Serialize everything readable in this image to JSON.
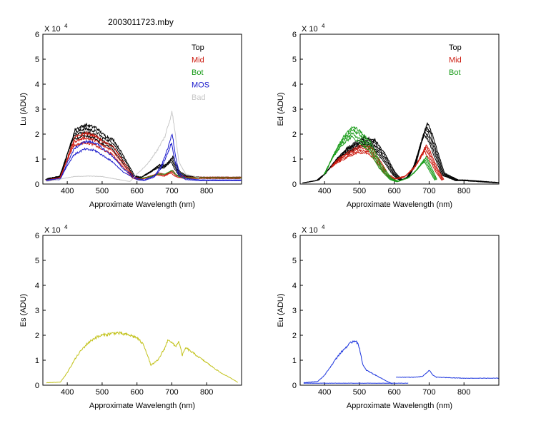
{
  "title": "2003011723.mby",
  "colors": {
    "top": "#000000",
    "mid": "#cc1a0f",
    "bot": "#1a9c1a",
    "mos": "#1a1acc",
    "bad": "#c8c8c8",
    "es": "#c2c21a",
    "eu": "#1a33dd"
  },
  "chart_data": [
    {
      "type": "line",
      "id": "lu",
      "ylabel": "Lu (ADU)",
      "xlabel": "Approximate Wavelength (nm)",
      "multiplier_text": "X 10",
      "multiplier_exp": "4",
      "xlim": [
        330,
        900
      ],
      "ylim": [
        0,
        6
      ],
      "xticks": [
        400,
        500,
        600,
        700,
        800
      ],
      "yticks": [
        0,
        1,
        2,
        3,
        4,
        5,
        6
      ],
      "legend": [
        "Top",
        "Mid",
        "Bot",
        "MOS",
        "Bad"
      ],
      "legend_color_keys": [
        "top",
        "mid",
        "bot",
        "mos",
        "bad"
      ],
      "series": [
        {
          "name": "Top",
          "color_key": "top",
          "count": 4,
          "x": [
            340,
            380,
            400,
            420,
            450,
            480,
            500,
            530,
            560,
            590,
            610,
            640,
            660,
            680,
            700,
            710,
            720,
            740,
            780,
            900
          ],
          "y": [
            0.2,
            0.3,
            1.2,
            2.0,
            2.15,
            2.05,
            1.8,
            1.6,
            1.0,
            0.3,
            0.25,
            0.5,
            0.7,
            0.7,
            1.0,
            0.7,
            0.45,
            0.3,
            0.25,
            0.25
          ]
        },
        {
          "name": "Mid",
          "color_key": "mid",
          "count": 3,
          "x": [
            340,
            380,
            400,
            420,
            450,
            480,
            500,
            530,
            560,
            590,
            610,
            640,
            660,
            680,
            700,
            710,
            720,
            740,
            780,
            900
          ],
          "y": [
            0.15,
            0.25,
            1.0,
            1.7,
            1.85,
            1.75,
            1.55,
            1.35,
            0.8,
            0.25,
            0.2,
            0.3,
            0.4,
            0.35,
            0.5,
            0.35,
            0.3,
            0.25,
            0.25,
            0.25
          ]
        },
        {
          "name": "Bot",
          "color_key": "bot",
          "count": 1,
          "x": [
            600,
            640,
            660,
            680,
            700,
            710,
            720,
            740,
            780,
            900
          ],
          "y": [
            0.2,
            0.3,
            0.4,
            0.4,
            0.55,
            0.4,
            0.3,
            0.25,
            0.25,
            0.25
          ]
        },
        {
          "name": "MOS",
          "color_key": "mos",
          "count": 2,
          "x": [
            340,
            380,
            400,
            420,
            450,
            480,
            500,
            530,
            560,
            600,
            620,
            650,
            670,
            690,
            700,
            710,
            720,
            740,
            780,
            900
          ],
          "y": [
            0.15,
            0.2,
            0.8,
            1.3,
            1.55,
            1.5,
            1.3,
            1.0,
            0.55,
            0.2,
            0.15,
            0.3,
            0.7,
            1.4,
            1.85,
            1.0,
            0.4,
            0.2,
            0.15,
            0.15
          ]
        },
        {
          "name": "Bad",
          "color_key": "bad",
          "count": 1,
          "x": [
            340,
            380,
            420,
            460,
            500,
            540,
            580,
            600,
            630,
            660,
            680,
            695,
            700,
            710,
            720,
            740,
            780
          ],
          "y": [
            0.1,
            0.2,
            0.3,
            0.32,
            0.3,
            0.2,
            0.1,
            0.4,
            0.8,
            1.4,
            1.9,
            2.6,
            2.95,
            2.0,
            0.9,
            0.4,
            0.25
          ]
        }
      ]
    },
    {
      "type": "line",
      "id": "ed",
      "ylabel": "Ed (ADU)",
      "xlabel": "Approximate Wavelength (nm)",
      "multiplier_text": "X 10",
      "multiplier_exp": "4",
      "xlim": [
        330,
        900
      ],
      "ylim": [
        0,
        6
      ],
      "xticks": [
        400,
        500,
        600,
        700,
        800
      ],
      "yticks": [
        0,
        1,
        2,
        3,
        4,
        5,
        6
      ],
      "legend": [
        "Top",
        "Mid",
        "Bot"
      ],
      "legend_color_keys": [
        "top",
        "mid",
        "bot"
      ],
      "series": [
        {
          "name": "Top",
          "color_key": "top",
          "count": 5,
          "x": [
            340,
            380,
            400,
            430,
            460,
            490,
            510,
            540,
            570,
            600,
            620,
            640,
            660,
            680,
            690,
            700,
            720,
            740,
            780,
            800,
            900
          ],
          "y": [
            0.05,
            0.15,
            0.4,
            0.9,
            1.3,
            1.55,
            1.7,
            1.6,
            1.1,
            0.4,
            0.15,
            0.3,
            0.8,
            1.8,
            2.2,
            2.0,
            1.2,
            0.4,
            0.15,
            0.15,
            0.05
          ]
        },
        {
          "name": "Mid",
          "color_key": "mid",
          "count": 4,
          "x": [
            420,
            440,
            470,
            500,
            530,
            550,
            580,
            600,
            630,
            660,
            680,
            690,
            700,
            720,
            740
          ],
          "y": [
            0.7,
            0.95,
            1.2,
            1.4,
            1.35,
            1.0,
            0.35,
            0.2,
            0.3,
            0.7,
            1.2,
            1.45,
            1.2,
            0.6,
            0.15
          ]
        },
        {
          "name": "Bot",
          "color_key": "bot",
          "count": 4,
          "x": [
            400,
            420,
            450,
            480,
            500,
            530,
            560,
            590,
            610,
            640,
            660,
            680,
            690,
            700,
            720
          ],
          "y": [
            0.4,
            1.0,
            1.7,
            2.1,
            1.9,
            1.5,
            0.7,
            0.2,
            0.1,
            0.25,
            0.5,
            0.85,
            1.0,
            0.7,
            0.15
          ]
        }
      ]
    },
    {
      "type": "line",
      "id": "es",
      "ylabel": "Es (ADU)",
      "xlabel": "Approximate Wavelength (nm)",
      "multiplier_text": "X 10",
      "multiplier_exp": "4",
      "xlim": [
        330,
        900
      ],
      "ylim": [
        0,
        6
      ],
      "xticks": [
        400,
        500,
        600,
        700,
        800
      ],
      "yticks": [
        0,
        1,
        2,
        3,
        4,
        5,
        6
      ],
      "legend": [],
      "legend_color_keys": [],
      "series": [
        {
          "name": "Es",
          "color_key": "es",
          "count": 1,
          "x": [
            340,
            380,
            400,
            420,
            440,
            460,
            480,
            500,
            520,
            540,
            560,
            580,
            600,
            620,
            635,
            640,
            660,
            680,
            690,
            700,
            710,
            720,
            730,
            740,
            760,
            780,
            800,
            820,
            840,
            860,
            880,
            890
          ],
          "y": [
            0.1,
            0.12,
            0.5,
            1.0,
            1.4,
            1.7,
            1.9,
            2.0,
            2.05,
            2.1,
            2.05,
            2.0,
            1.9,
            1.6,
            1.0,
            0.8,
            1.0,
            1.5,
            1.85,
            1.7,
            1.55,
            1.75,
            1.2,
            1.5,
            1.3,
            1.1,
            0.9,
            0.7,
            0.5,
            0.35,
            0.2,
            0.1
          ]
        }
      ]
    },
    {
      "type": "line",
      "id": "eu",
      "ylabel": "Eu (ADU)",
      "xlabel": "Approximate Wavelength (nm)",
      "multiplier_text": "X 10",
      "multiplier_exp": "4",
      "xlim": [
        330,
        900
      ],
      "ylim": [
        0,
        6
      ],
      "xticks": [
        400,
        500,
        600,
        700,
        800
      ],
      "yticks": [
        0,
        1,
        2,
        3,
        4,
        5,
        6
      ],
      "legend": [],
      "legend_color_keys": [],
      "series": [
        {
          "name": "Eu",
          "color_key": "eu",
          "count": 1,
          "x": [
            340,
            380,
            400,
            420,
            440,
            460,
            480,
            490,
            500,
            510,
            520,
            540,
            560,
            580,
            595
          ],
          "y": [
            0.1,
            0.15,
            0.4,
            0.8,
            1.2,
            1.5,
            1.75,
            1.8,
            1.5,
            0.8,
            0.6,
            0.45,
            0.3,
            0.15,
            0.05
          ]
        },
        {
          "name": "Eu-base",
          "color_key": "eu",
          "count": 1,
          "x": [
            340,
            640
          ],
          "y": [
            0.08,
            0.08
          ]
        },
        {
          "name": "Eu-red",
          "color_key": "eu",
          "count": 1,
          "x": [
            605,
            660,
            680,
            690,
            700,
            710,
            720,
            760,
            800,
            900
          ],
          "y": [
            0.32,
            0.32,
            0.35,
            0.45,
            0.6,
            0.42,
            0.32,
            0.3,
            0.28,
            0.28
          ]
        }
      ]
    }
  ]
}
